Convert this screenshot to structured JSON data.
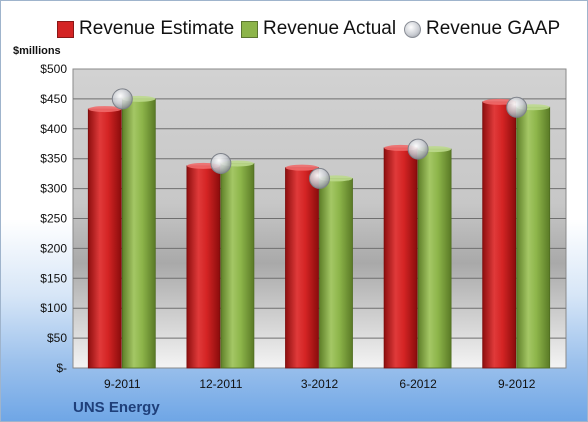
{
  "legend": [
    {
      "label": "Revenue Estimate",
      "kind": "bar",
      "color": "#d42424"
    },
    {
      "label": "Revenue Actual",
      "kind": "bar",
      "color": "#8db54a"
    },
    {
      "label": "Revenue GAAP",
      "kind": "marker",
      "color": "#b9bdc4"
    }
  ],
  "unit_label": "$millions",
  "company": "UNS Energy",
  "chart_data": {
    "type": "bar",
    "categories": [
      "9-2011",
      "12-2011",
      "3-2012",
      "6-2012",
      "9-2012"
    ],
    "series": [
      {
        "name": "Revenue Estimate",
        "values": [
          433,
          338,
          335,
          368,
          445
        ],
        "color": "#d42424"
      },
      {
        "name": "Revenue Actual",
        "values": [
          450,
          342,
          317,
          366,
          436
        ],
        "color": "#8db54a"
      },
      {
        "name": "Revenue GAAP",
        "values": [
          450,
          342,
          317,
          366,
          436
        ],
        "color": "#b9bdc4",
        "marker": "circle"
      }
    ],
    "yticks": [
      "$-",
      "$50",
      "$100",
      "$150",
      "$200",
      "$250",
      "$300",
      "$350",
      "$400",
      "$450",
      "$500"
    ],
    "ylim": [
      0,
      500
    ],
    "grid": true,
    "legend_position": "top"
  }
}
